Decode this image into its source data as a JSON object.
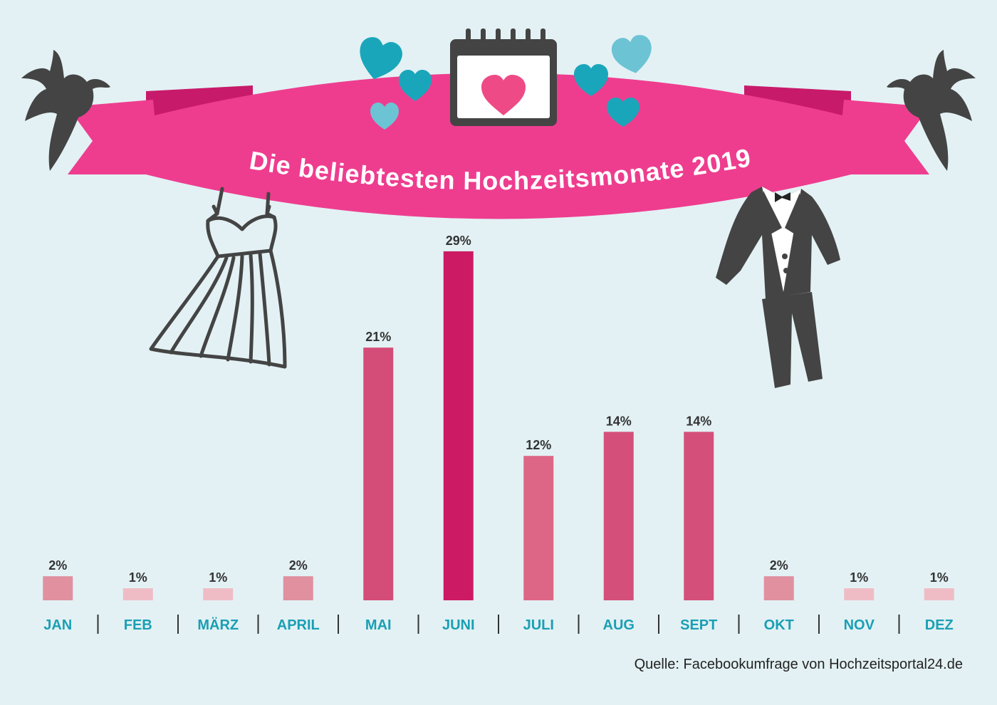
{
  "chart_data": {
    "type": "bar",
    "title": "Die beliebtesten Hochzeitsmonate 2019",
    "categories": [
      "JAN",
      "FEB",
      "MÄRZ",
      "APRIL",
      "MAI",
      "JUNI",
      "JULI",
      "AUG",
      "SEPT",
      "OKT",
      "NOV",
      "DEZ"
    ],
    "values": [
      2,
      1,
      1,
      2,
      21,
      29,
      12,
      14,
      14,
      2,
      1,
      1
    ],
    "value_labels": [
      "2%",
      "1%",
      "1%",
      "2%",
      "21%",
      "29%",
      "12%",
      "14%",
      "14%",
      "2%",
      "1%",
      "1%"
    ],
    "bar_colors": [
      "#e0909f",
      "#efbcc6",
      "#efbcc6",
      "#e0909f",
      "#d44d78",
      "#cc1a64",
      "#dd6686",
      "#d4507a",
      "#d4507a",
      "#e0909f",
      "#efbcc6",
      "#efbcc6"
    ],
    "unit": "%",
    "grid": false,
    "legend": "none"
  },
  "source": "Quelle: Facebookumfrage von Hochzeitsportal24.de",
  "colors": {
    "background": "#e3f1f4",
    "ribbon": "#ee3d8f",
    "ribbon_dark": "#c81a6a",
    "category_text": "#1a9fb4",
    "icon_dark": "#444444",
    "heart_teal": "#1aa6ba",
    "heart_pink": "#ee4a86"
  },
  "icons": [
    "dove-icon",
    "calendar-heart-icon",
    "heart-icon",
    "wedding-dress-icon",
    "tuxedo-icon"
  ]
}
